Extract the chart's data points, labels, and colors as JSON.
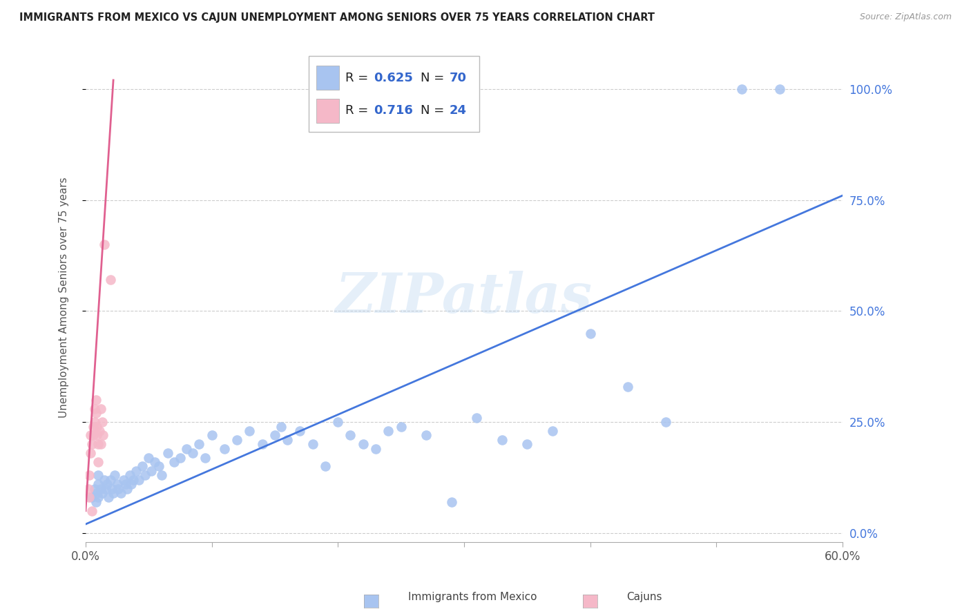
{
  "title": "IMMIGRANTS FROM MEXICO VS CAJUN UNEMPLOYMENT AMONG SENIORS OVER 75 YEARS CORRELATION CHART",
  "source": "Source: ZipAtlas.com",
  "ylabel_label": "Unemployment Among Seniors over 75 years",
  "blue_color": "#a8c4f0",
  "pink_color": "#f5b8c8",
  "blue_line_color": "#4477dd",
  "pink_line_color": "#e06090",
  "right_axis_color": "#4477dd",
  "xlim": [
    0.0,
    0.6
  ],
  "ylim": [
    -0.02,
    1.08
  ],
  "yticks": [
    0.0,
    0.25,
    0.5,
    0.75,
    1.0
  ],
  "ytick_labels": [
    "0.0%",
    "25.0%",
    "50.0%",
    "75.0%",
    "100.0%"
  ],
  "xticks": [
    0.0,
    0.1,
    0.2,
    0.3,
    0.4,
    0.5,
    0.6
  ],
  "blue_scatter_x": [
    0.005,
    0.007,
    0.008,
    0.009,
    0.01,
    0.01,
    0.01,
    0.012,
    0.013,
    0.015,
    0.016,
    0.017,
    0.018,
    0.02,
    0.021,
    0.022,
    0.023,
    0.025,
    0.026,
    0.028,
    0.03,
    0.032,
    0.033,
    0.035,
    0.036,
    0.038,
    0.04,
    0.042,
    0.045,
    0.047,
    0.05,
    0.052,
    0.055,
    0.058,
    0.06,
    0.065,
    0.07,
    0.075,
    0.08,
    0.085,
    0.09,
    0.095,
    0.1,
    0.11,
    0.12,
    0.13,
    0.14,
    0.15,
    0.155,
    0.16,
    0.17,
    0.18,
    0.19,
    0.2,
    0.21,
    0.22,
    0.23,
    0.24,
    0.25,
    0.27,
    0.29,
    0.31,
    0.33,
    0.35,
    0.37,
    0.4,
    0.43,
    0.46,
    0.52,
    0.55
  ],
  "blue_scatter_y": [
    0.08,
    0.1,
    0.07,
    0.09,
    0.11,
    0.08,
    0.13,
    0.1,
    0.09,
    0.12,
    0.1,
    0.11,
    0.08,
    0.12,
    0.1,
    0.09,
    0.13,
    0.11,
    0.1,
    0.09,
    0.12,
    0.11,
    0.1,
    0.13,
    0.11,
    0.12,
    0.14,
    0.12,
    0.15,
    0.13,
    0.17,
    0.14,
    0.16,
    0.15,
    0.13,
    0.18,
    0.16,
    0.17,
    0.19,
    0.18,
    0.2,
    0.17,
    0.22,
    0.19,
    0.21,
    0.23,
    0.2,
    0.22,
    0.24,
    0.21,
    0.23,
    0.2,
    0.15,
    0.25,
    0.22,
    0.2,
    0.19,
    0.23,
    0.24,
    0.22,
    0.07,
    0.26,
    0.21,
    0.2,
    0.23,
    0.45,
    0.33,
    0.25,
    1.0,
    1.0
  ],
  "pink_scatter_x": [
    0.002,
    0.003,
    0.003,
    0.004,
    0.004,
    0.005,
    0.005,
    0.006,
    0.006,
    0.007,
    0.007,
    0.008,
    0.008,
    0.009,
    0.009,
    0.01,
    0.01,
    0.011,
    0.012,
    0.012,
    0.013,
    0.014,
    0.015,
    0.02
  ],
  "pink_scatter_y": [
    0.1,
    0.08,
    0.13,
    0.22,
    0.18,
    0.2,
    0.05,
    0.24,
    0.22,
    0.28,
    0.25,
    0.3,
    0.27,
    0.24,
    0.22,
    0.2,
    0.16,
    0.23,
    0.28,
    0.2,
    0.25,
    0.22,
    0.65,
    0.57
  ],
  "watermark": "ZIPatlas",
  "blue_trend_x": [
    0.0,
    0.6
  ],
  "blue_trend_y": [
    0.02,
    0.76
  ],
  "pink_trend_x": [
    0.0,
    0.022
  ],
  "pink_trend_y": [
    0.05,
    1.02
  ],
  "legend_r1_color": "#3366cc",
  "legend_n1_color": "#3366cc",
  "legend_r2_color": "#3366cc",
  "legend_n2_color": "#3366cc",
  "legend_label_color": "#222222"
}
